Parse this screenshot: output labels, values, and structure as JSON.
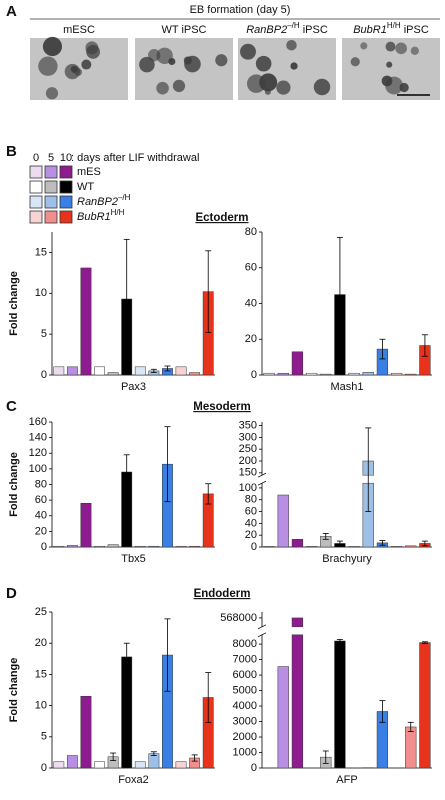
{
  "panel_a": {
    "label": "A",
    "title": "EB formation (day 5)",
    "images": [
      [
        {
          "text": "mESC",
          "style": "normal"
        }
      ],
      [
        {
          "text": "WT iPSC",
          "style": "normal"
        }
      ],
      [
        {
          "text": "RanBP2",
          "style": "italic"
        },
        {
          "text": "–/H",
          "style": "sup"
        },
        {
          "text": " iPSC",
          "style": "normal"
        }
      ],
      [
        {
          "text": "BubR1",
          "style": "italic"
        },
        {
          "text": "H/H",
          "style": "sup"
        },
        {
          "text": " iPSC",
          "style": "normal"
        }
      ]
    ]
  },
  "panel_b": {
    "label": "B",
    "section": "Ectoderm"
  },
  "panel_c": {
    "label": "C",
    "section": "Mesoderm"
  },
  "panel_d": {
    "label": "D",
    "section": "Endoderm"
  },
  "legend": {
    "days": [
      0,
      5,
      10
    ],
    "days_label": ": days after LIF withdrawal",
    "entries": [
      {
        "name": [
          {
            "text": "mES",
            "style": "normal"
          }
        ],
        "colors": [
          "#eddcf0",
          "#b88fe3",
          "#8e1c8e"
        ]
      },
      {
        "name": [
          {
            "text": "WT",
            "style": "normal"
          }
        ],
        "colors": [
          "#ffffff",
          "#bdbdbd",
          "#000000"
        ]
      },
      {
        "name": [
          {
            "text": "RanBP2",
            "style": "italic"
          },
          {
            "text": "–/H",
            "style": "sup"
          }
        ],
        "colors": [
          "#d9e6f6",
          "#9ec0e8",
          "#3a7fe3"
        ]
      },
      {
        "name": [
          {
            "text": "BubR1",
            "style": "italic"
          },
          {
            "text": "H/H",
            "style": "sup"
          }
        ],
        "colors": [
          "#f8d3d3",
          "#f38e8e",
          "#e8331c"
        ]
      }
    ]
  },
  "chart_data": [
    {
      "type": "bar",
      "xlabel": "Pax3",
      "ylabel": "Fold change",
      "ylim": [
        0,
        17.5
      ],
      "yticks": [
        0,
        5,
        10,
        15
      ],
      "series": [
        {
          "colors": [
            "#eddcf0",
            "#b88fe3",
            "#8e1c8e"
          ],
          "values": [
            1,
            1,
            13.1
          ],
          "errors": [
            null,
            null,
            null
          ]
        },
        {
          "colors": [
            "#ffffff",
            "#bdbdbd",
            "#000000"
          ],
          "values": [
            1,
            0.3,
            9.3
          ],
          "errors": [
            null,
            null,
            7.3
          ]
        },
        {
          "colors": [
            "#d9e6f6",
            "#9ec0e8",
            "#3a7fe3"
          ],
          "values": [
            1,
            0.5,
            0.8
          ],
          "errors": [
            null,
            0.2,
            0.3
          ]
        },
        {
          "colors": [
            "#f8d3d3",
            "#f38e8e",
            "#e8331c"
          ],
          "values": [
            1,
            0.3,
            10.2
          ],
          "errors": [
            null,
            null,
            5
          ]
        }
      ]
    },
    {
      "type": "bar",
      "xlabel": "Mash1",
      "ylim": [
        0,
        80
      ],
      "yticks": [
        0,
        20,
        40,
        60,
        80
      ],
      "series": [
        {
          "colors": [
            "#eddcf0",
            "#b88fe3",
            "#8e1c8e"
          ],
          "values": [
            1,
            1,
            13
          ],
          "errors": [
            null,
            null,
            null
          ]
        },
        {
          "colors": [
            "#ffffff",
            "#bdbdbd",
            "#000000"
          ],
          "values": [
            1,
            0.5,
            45
          ],
          "errors": [
            null,
            null,
            32
          ]
        },
        {
          "colors": [
            "#d9e6f6",
            "#9ec0e8",
            "#3a7fe3"
          ],
          "values": [
            1,
            1.5,
            14.5
          ],
          "errors": [
            null,
            null,
            5.5
          ]
        },
        {
          "colors": [
            "#f8d3d3",
            "#f38e8e",
            "#e8331c"
          ],
          "values": [
            1,
            0.5,
            16.5
          ],
          "errors": [
            null,
            null,
            6
          ]
        }
      ]
    },
    {
      "type": "bar",
      "xlabel": "Tbx5",
      "ylabel": "Fold change",
      "ylim": [
        0,
        160
      ],
      "yticks": [
        0,
        20,
        40,
        60,
        80,
        100,
        120,
        140,
        160
      ],
      "series": [
        {
          "colors": [
            "#eddcf0",
            "#b88fe3",
            "#8e1c8e"
          ],
          "values": [
            1,
            2,
            56
          ],
          "errors": [
            null,
            null,
            null
          ]
        },
        {
          "colors": [
            "#ffffff",
            "#bdbdbd",
            "#000000"
          ],
          "values": [
            1,
            3,
            96
          ],
          "errors": [
            null,
            null,
            22
          ]
        },
        {
          "colors": [
            "#d9e6f6",
            "#9ec0e8",
            "#3a7fe3"
          ],
          "values": [
            1,
            1,
            106
          ],
          "errors": [
            null,
            null,
            48
          ]
        },
        {
          "colors": [
            "#f8d3d3",
            "#f38e8e",
            "#e8331c"
          ],
          "values": [
            1,
            1,
            68
          ],
          "errors": [
            null,
            null,
            13
          ]
        }
      ]
    },
    {
      "type": "bar",
      "xlabel": "Brachyury",
      "ylim": [
        0,
        365
      ],
      "ybreak": [
        108,
        140
      ],
      "yticks": [
        0,
        20,
        40,
        60,
        80,
        100,
        150,
        200,
        250,
        300,
        350
      ],
      "series": [
        {
          "colors": [
            "#eddcf0",
            "#b88fe3",
            "#8e1c8e"
          ],
          "values": [
            1,
            88,
            13
          ],
          "errors": [
            null,
            null,
            null
          ]
        },
        {
          "colors": [
            "#ffffff",
            "#bdbdbd",
            "#000000"
          ],
          "values": [
            1,
            18,
            6
          ],
          "errors": [
            null,
            5,
            4
          ]
        },
        {
          "colors": [
            "#d9e6f6",
            "#9ec0e8",
            "#3a7fe3"
          ],
          "values": [
            1,
            200,
            7
          ],
          "errors": [
            null,
            140,
            4
          ]
        },
        {
          "colors": [
            "#f8d3d3",
            "#f38e8e",
            "#e8331c"
          ],
          "values": [
            1,
            2,
            6
          ],
          "errors": [
            null,
            null,
            4
          ]
        }
      ]
    },
    {
      "type": "bar",
      "xlabel": "Foxa2",
      "ylabel": "Fold change",
      "ylim": [
        0,
        25
      ],
      "yticks": [
        0,
        5,
        10,
        15,
        20,
        25
      ],
      "series": [
        {
          "colors": [
            "#eddcf0",
            "#b88fe3",
            "#8e1c8e"
          ],
          "values": [
            1,
            2,
            11.5
          ],
          "errors": [
            null,
            null,
            null
          ]
        },
        {
          "colors": [
            "#ffffff",
            "#bdbdbd",
            "#000000"
          ],
          "values": [
            1,
            1.8,
            17.8
          ],
          "errors": [
            null,
            0.6,
            2.2
          ]
        },
        {
          "colors": [
            "#d9e6f6",
            "#9ec0e8",
            "#3a7fe3"
          ],
          "values": [
            1,
            2.3,
            18.1
          ],
          "errors": [
            null,
            0.3,
            5.8
          ]
        },
        {
          "colors": [
            "#f8d3d3",
            "#f38e8e",
            "#e8331c"
          ],
          "values": [
            1,
            1.6,
            11.3
          ],
          "errors": [
            null,
            0.5,
            4
          ]
        }
      ]
    },
    {
      "type": "bar",
      "xlabel": "AFP",
      "ylim": [
        0,
        570000
      ],
      "ybreak": [
        8600,
        565000
      ],
      "yticks": [
        0,
        1000,
        2000,
        3000,
        4000,
        5000,
        6000,
        7000,
        8000,
        568000
      ],
      "series": [
        {
          "colors": [
            "#eddcf0",
            "#b88fe3",
            "#8e1c8e"
          ],
          "values": [
            1,
            6550,
            568000
          ],
          "errors": [
            null,
            null,
            null
          ]
        },
        {
          "colors": [
            "#ffffff",
            "#bdbdbd",
            "#000000"
          ],
          "values": [
            1,
            700,
            8200
          ],
          "errors": [
            null,
            400,
            100
          ]
        },
        {
          "colors": [
            "#d9e6f6",
            "#9ec0e8",
            "#3a7fe3"
          ],
          "values": [
            1,
            20,
            3650
          ],
          "errors": [
            null,
            null,
            700
          ]
        },
        {
          "colors": [
            "#f8d3d3",
            "#f38e8e",
            "#e8331c"
          ],
          "values": [
            1,
            2650,
            8100
          ],
          "errors": [
            null,
            300,
            50
          ]
        }
      ]
    }
  ]
}
